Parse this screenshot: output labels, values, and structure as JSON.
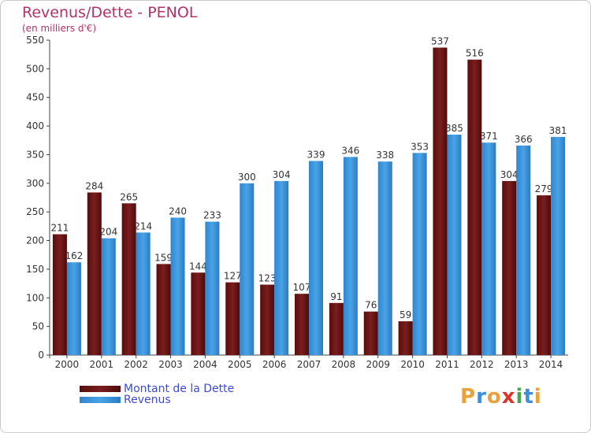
{
  "chart_data": {
    "type": "bar",
    "title": "Revenus/Dette - PENOL",
    "subtitle": "(en milliers d'€)",
    "categories": [
      "2000",
      "2001",
      "2002",
      "2003",
      "2004",
      "2005",
      "2006",
      "2007",
      "2008",
      "2009",
      "2010",
      "2011",
      "2012",
      "2013",
      "2014"
    ],
    "series": [
      {
        "name": "Montant de la Dette",
        "color": "#7a1e1e",
        "values": [
          211,
          284,
          265,
          159,
          144,
          127,
          123,
          107,
          91,
          76,
          59,
          537,
          516,
          304,
          279
        ]
      },
      {
        "name": "Revenus",
        "color": "#4aa3e6",
        "values": [
          162,
          204,
          214,
          240,
          233,
          300,
          304,
          339,
          346,
          338,
          353,
          385,
          371,
          366,
          381
        ]
      }
    ],
    "ylim": [
      0,
      550
    ],
    "yticks": [
      0,
      50,
      100,
      150,
      200,
      250,
      300,
      350,
      400,
      450,
      500,
      550
    ],
    "grid": false,
    "legend_position": "bottom-left"
  },
  "logo": {
    "text": "Proxiti",
    "letters": [
      {
        "ch": "P",
        "color": "#e9a13b"
      },
      {
        "ch": "r",
        "color": "#3c8fd6"
      },
      {
        "ch": "o",
        "color": "#e9a13b"
      },
      {
        "ch": "x",
        "color": "#d9362f"
      },
      {
        "ch": "i",
        "color": "#4aa34a"
      },
      {
        "ch": "t",
        "color": "#3c8fd6"
      },
      {
        "ch": "i",
        "color": "#e9a13b"
      }
    ]
  }
}
